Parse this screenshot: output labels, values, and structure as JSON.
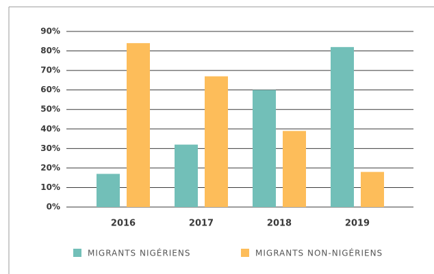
{
  "chart_data": {
    "type": "bar",
    "categories": [
      "2016",
      "2017",
      "2018",
      "2019"
    ],
    "series": [
      {
        "name": "MIGRANTS NIGÉRIENS",
        "color": "#72bfb8",
        "values": [
          17,
          32,
          60,
          82
        ]
      },
      {
        "name": "MIGRANTS NON-NIGÉRIENS",
        "color": "#fdbd5a",
        "values": [
          84,
          67,
          39,
          18
        ]
      }
    ],
    "ylim": [
      0,
      90
    ],
    "yticks": [
      {
        "value": 0,
        "label": "0%"
      },
      {
        "value": 10,
        "label": "10%"
      },
      {
        "value": 20,
        "label": "20%"
      },
      {
        "value": 30,
        "label": "30%"
      },
      {
        "value": 40,
        "label": "40%"
      },
      {
        "value": 50,
        "label": "50%"
      },
      {
        "value": 60,
        "label": "60%"
      },
      {
        "value": 70,
        "label": "70%"
      },
      {
        "value": 80,
        "label": "80%"
      },
      {
        "value": 90,
        "label": "90%"
      }
    ],
    "grid": true
  }
}
